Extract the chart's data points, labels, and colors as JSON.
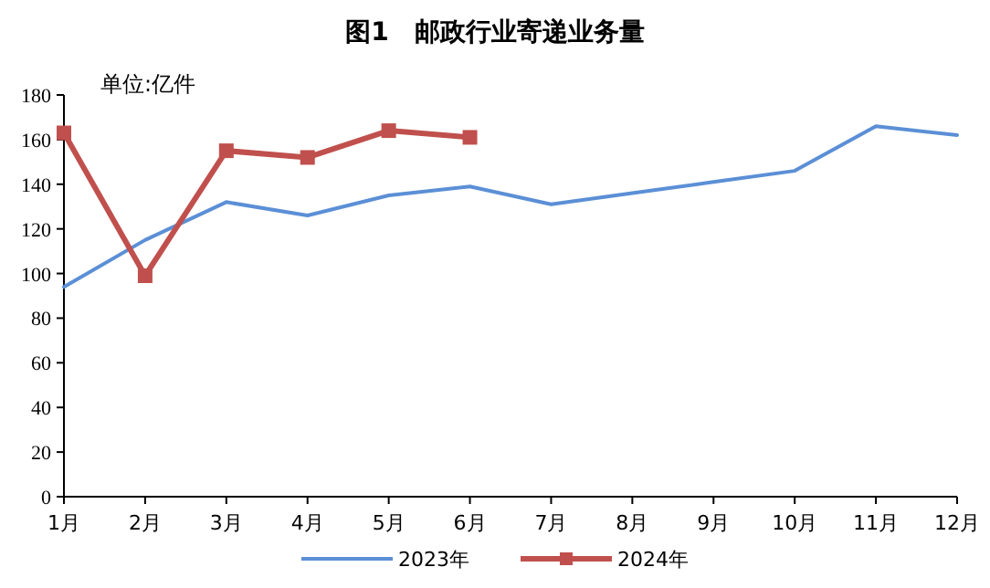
{
  "chart_data": {
    "type": "line",
    "title": "图1　邮政行业寄递业务量",
    "annotations": [
      "单位:亿件"
    ],
    "categories": [
      "1月",
      "2月",
      "3月",
      "4月",
      "5月",
      "6月",
      "7月",
      "8月",
      "9月",
      "10月",
      "11月",
      "12月"
    ],
    "series": [
      {
        "name": "2023年",
        "color": "#5b8fd6",
        "marker": "none",
        "values": [
          94,
          115,
          132,
          126,
          135,
          139,
          131,
          136,
          141,
          146,
          166,
          162
        ]
      },
      {
        "name": "2024年",
        "color": "#c0504d",
        "marker": "square",
        "values": [
          163,
          99,
          155,
          152,
          164,
          161,
          null,
          null,
          null,
          null,
          null,
          null
        ]
      }
    ],
    "ylim": [
      0,
      180
    ],
    "yticks": [
      0,
      20,
      40,
      60,
      80,
      100,
      120,
      140,
      160,
      180
    ],
    "grid": false,
    "legend": "bottom"
  }
}
